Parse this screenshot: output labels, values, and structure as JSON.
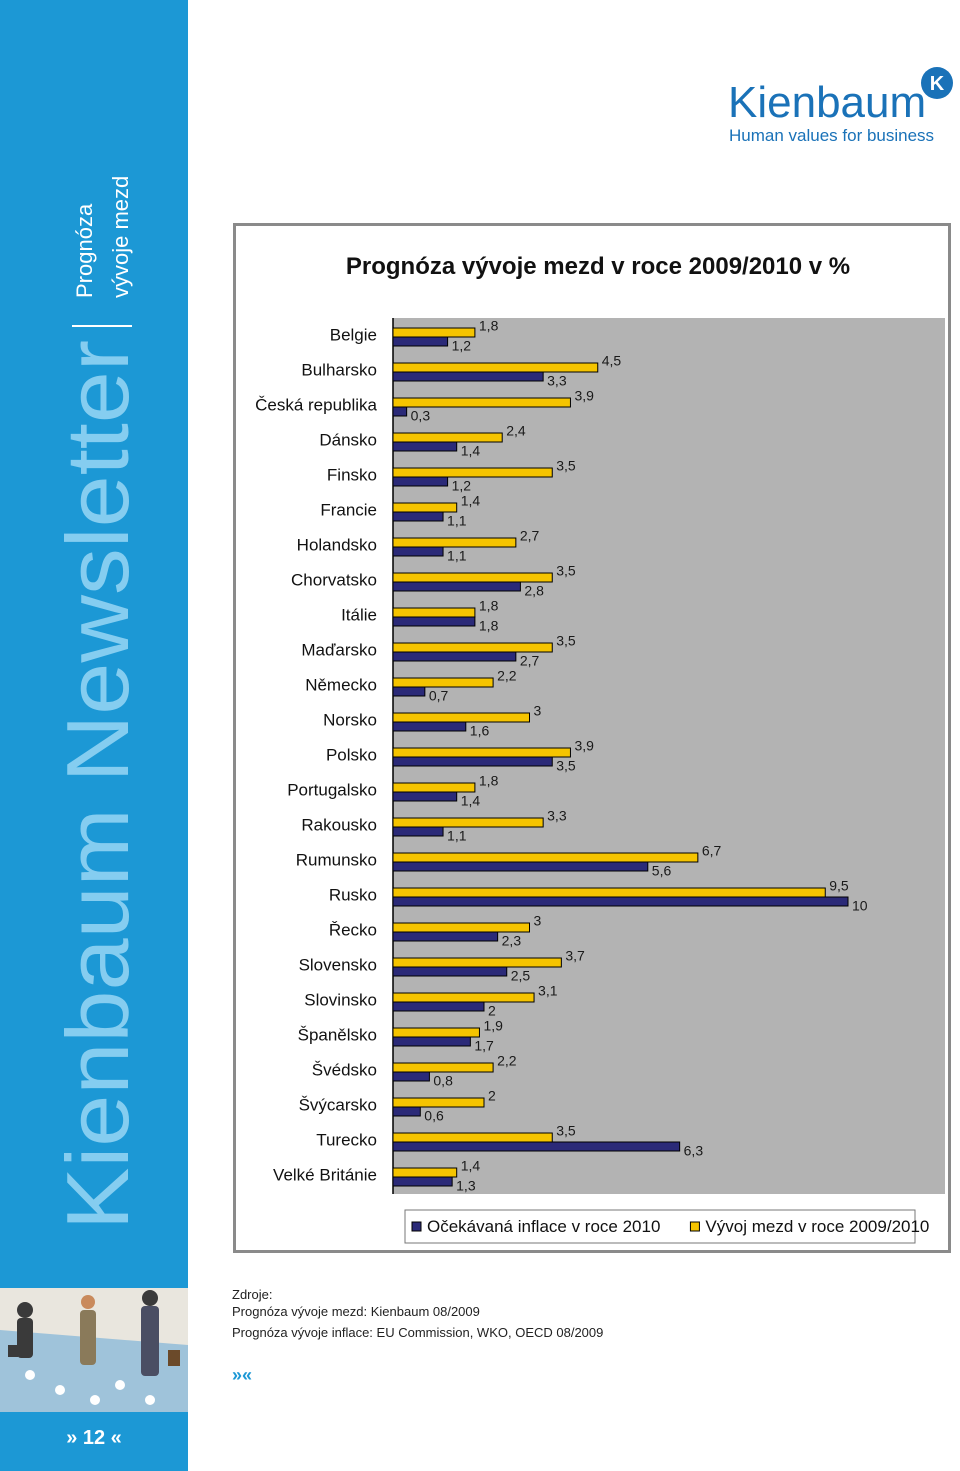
{
  "sidebar": {
    "title": "Kienbaum Newsletter",
    "section": [
      "Prognóza",
      "vývoje mezd"
    ]
  },
  "logo": {
    "name": "Kienbaum",
    "badge": "K",
    "tagline": "Human values for business"
  },
  "chart_data": {
    "type": "bar",
    "orientation": "horizontal",
    "title": "Prognóza vývoje mezd v roce 2009/2010 v %",
    "categories": [
      "Belgie",
      "Bulharsko",
      "Česká republika",
      "Dánsko",
      "Finsko",
      "Francie",
      "Holandsko",
      "Chorvatsko",
      "Itálie",
      "Maďarsko",
      "Německo",
      "Norsko",
      "Polsko",
      "Portugalsko",
      "Rakousko",
      "Rumunsko",
      "Rusko",
      "Řecko",
      "Slovensko",
      "Slovinsko",
      "Španělsko",
      "Švédsko",
      "Švýcarsko",
      "Turecko",
      "Velké Británie"
    ],
    "series": [
      {
        "name": "Očekávaná inflace v roce 2010",
        "color": "#2b2a78",
        "values": [
          1.2,
          3.3,
          0.3,
          1.4,
          1.2,
          1.1,
          1.1,
          2.8,
          1.8,
          2.7,
          0.7,
          1.6,
          3.5,
          1.4,
          1.1,
          5.6,
          10,
          2.3,
          2.5,
          2,
          1.7,
          0.8,
          0.6,
          6.3,
          1.3
        ],
        "value_labels": [
          "1,2",
          "3,3",
          "0,3",
          "1,4",
          "1,2",
          "1,1",
          "1,1",
          "2,8",
          "1,8",
          "2,7",
          "0,7",
          "1,6",
          "3,5",
          "1,4",
          "1,1",
          "5,6",
          "10",
          "2,3",
          "2,5",
          "2",
          "1,7",
          "0,8",
          "0,6",
          "6,3",
          "1,3"
        ]
      },
      {
        "name": "Vývoj mezd v roce 2009/2010",
        "color": "#f5c400",
        "values": [
          1.8,
          4.5,
          3.9,
          2.4,
          3.5,
          1.4,
          2.7,
          3.5,
          1.8,
          3.5,
          2.2,
          3,
          3.9,
          1.8,
          3.3,
          6.7,
          9.5,
          3,
          3.7,
          3.1,
          1.9,
          2.2,
          2,
          3.5,
          1.4
        ],
        "value_labels": [
          "1,8",
          "4,5",
          "3,9",
          "2,4",
          "3,5",
          "1,4",
          "2,7",
          "3,5",
          "1,8",
          "3,5",
          "2,2",
          "3",
          "3,9",
          "1,8",
          "3,3",
          "6,7",
          "9,5",
          "3",
          "3,7",
          "3,1",
          "1,9",
          "2,2",
          "2",
          "3,5",
          "1,4"
        ]
      }
    ],
    "legend": "bottom"
  },
  "sources": {
    "heading": "Zdroje:",
    "lines": [
      "Prognóza vývoje mezd: Kienbaum  08/2009",
      "Prognóza vývoje inflace: EU Commission, WKO, OECD 08/2009"
    ]
  },
  "footer": {
    "ornament": "»«",
    "page": "» 12 «"
  }
}
